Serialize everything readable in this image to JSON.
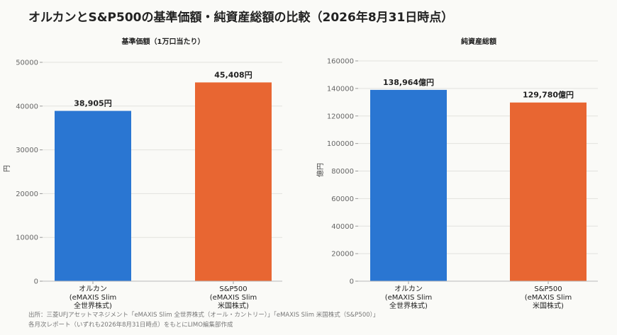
{
  "title": "オルカンとS&P500の基準価額・純資産総額の比較（2026年8月31日時点）",
  "source_lines": [
    "出所：三菱UFJアセットマネジメント「eMAXIS Slim 全世界株式（オール・カントリー）」「eMAXIS Slim 米国株式（S&P500）」",
    "各月次レポート（いずれも2026年8月31日時点）をもとにLIMO編集部作成"
  ],
  "colors": {
    "orukan": "#2a76d2",
    "sp500": "#e86632"
  },
  "chart_data": [
    {
      "type": "bar",
      "title": "基準価額（1万口当たり）",
      "ylabel": "円",
      "xlabel": "",
      "categories": [
        [
          "オルカン",
          "(eMAXIS Slim",
          "全世界株式)"
        ],
        [
          "S&P500",
          "(eMAXIS Slim",
          "米国株式)"
        ]
      ],
      "values": [
        38905,
        45408
      ],
      "data_labels": [
        "38,905円",
        "45,408円"
      ],
      "bar_colors": [
        "#2a76d2",
        "#e86632"
      ],
      "ylim": [
        0,
        50000
      ],
      "yticks": [
        0,
        10000,
        20000,
        30000,
        40000,
        50000
      ],
      "grid": true
    },
    {
      "type": "bar",
      "title": "純資産総額",
      "ylabel": "億円",
      "xlabel": "",
      "categories": [
        [
          "オルカン",
          "(eMAXIS Slim",
          "全世界株式)"
        ],
        [
          "S&P500",
          "(eMAXIS Slim",
          "米国株式)"
        ]
      ],
      "values": [
        138964,
        129780
      ],
      "data_labels": [
        "138,964億円",
        "129,780億円"
      ],
      "bar_colors": [
        "#2a76d2",
        "#e86632"
      ],
      "ylim": [
        0,
        160000
      ],
      "yticks": [
        0,
        20000,
        40000,
        60000,
        80000,
        100000,
        120000,
        140000,
        160000
      ],
      "grid": true
    }
  ]
}
